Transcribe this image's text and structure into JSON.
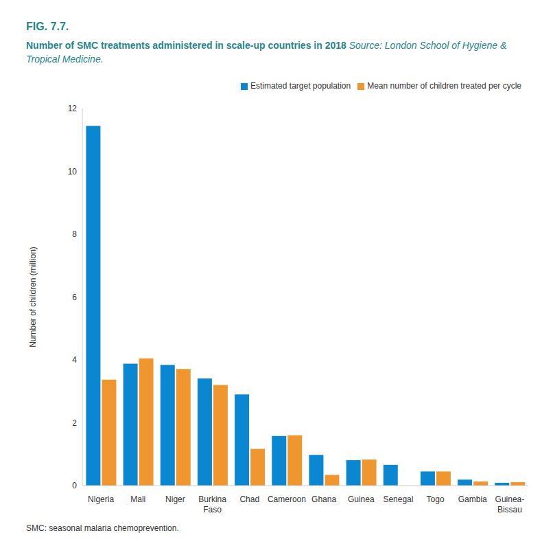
{
  "chart_data": {
    "type": "bar",
    "title": "FIG. 7.7.",
    "subtitle": "Number of SMC treatments administered in scale-up countries in 2018",
    "annotations": [
      "Source: London School of Hygiene & Tropical Medicine.",
      "SMC: seasonal malaria chemoprevention."
    ],
    "y_label": "Number of children (million)",
    "categories": [
      "Nigeria",
      "Mali",
      "Niger",
      "Burkina Faso",
      "Chad",
      "Cameroon",
      "Ghana",
      "Guinea",
      "Senegal",
      "Togo",
      "Gambia",
      "Guinea-Bissau"
    ],
    "series": [
      {
        "name": "Estimated target population",
        "color": "#0b86d0",
        "values": [
          11.45,
          3.88,
          3.84,
          3.41,
          2.9,
          1.58,
          0.98,
          0.81,
          0.66,
          0.45,
          0.19,
          0.09
        ]
      },
      {
        "name": "Mean number of children treated per cycle",
        "color": "#f0962e",
        "values": [
          3.37,
          4.05,
          3.71,
          3.2,
          1.17,
          1.6,
          0.34,
          0.83,
          null,
          0.45,
          0.13,
          0.11
        ]
      }
    ],
    "ylim": [
      0,
      12
    ],
    "yticks": [
      0,
      2,
      4,
      6,
      8,
      10,
      12
    ],
    "grid": false,
    "legend": "top-right"
  }
}
